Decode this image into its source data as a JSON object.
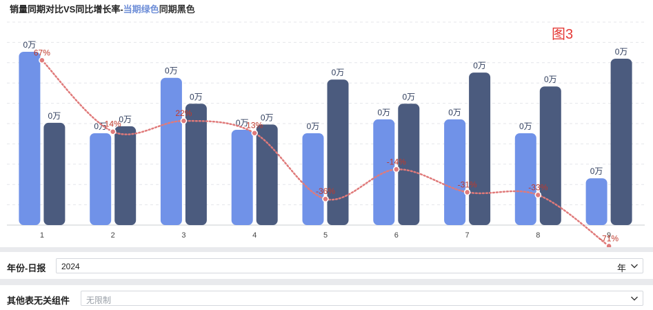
{
  "title": {
    "main": "销量同期对比VS同比增长率-",
    "green": "当期绿色",
    "black": "同期黑色"
  },
  "figure_label": "图3",
  "colors": {
    "current": "#7092e8",
    "prior": "#4b5b7e",
    "line": "#e07a7a",
    "label_dark": "#2f3d5c",
    "label_red": "#c0392b"
  },
  "chart_data": {
    "type": "bar",
    "categories": [
      "1",
      "2",
      "3",
      "4",
      "5",
      "6",
      "7",
      "8",
      "9"
    ],
    "series": [
      {
        "values": [
          100,
          53,
          85,
          55,
          53,
          61,
          61,
          53,
          27
        ]
      },
      {
        "values": [
          59,
          57,
          70,
          58,
          84,
          70,
          88,
          80,
          96
        ]
      }
    ],
    "bar_labels": [
      "0万",
      "0万",
      "0万",
      "0万",
      "0万",
      "0万",
      "0万",
      "0万",
      "0万"
    ],
    "growth_rate": {
      "values": [
        67,
        14,
        22,
        13,
        -36,
        -14,
        -31,
        -33,
        -71
      ],
      "labels": [
        "67%",
        "14%",
        "22%",
        "13%",
        "-36%",
        "-14%",
        "-31%",
        "-33%",
        "-71%"
      ],
      "ylim": [
        -80,
        80
      ]
    },
    "ylim": [
      0,
      110
    ],
    "grid": true,
    "legend": "none"
  },
  "filters": [
    {
      "label": "年份-日报",
      "value": "2024",
      "unit": "年",
      "icon": "chevron-down-icon"
    },
    {
      "label": "其他表无关组件",
      "placeholder": "无限制",
      "icon": "chevron-down-icon"
    }
  ]
}
